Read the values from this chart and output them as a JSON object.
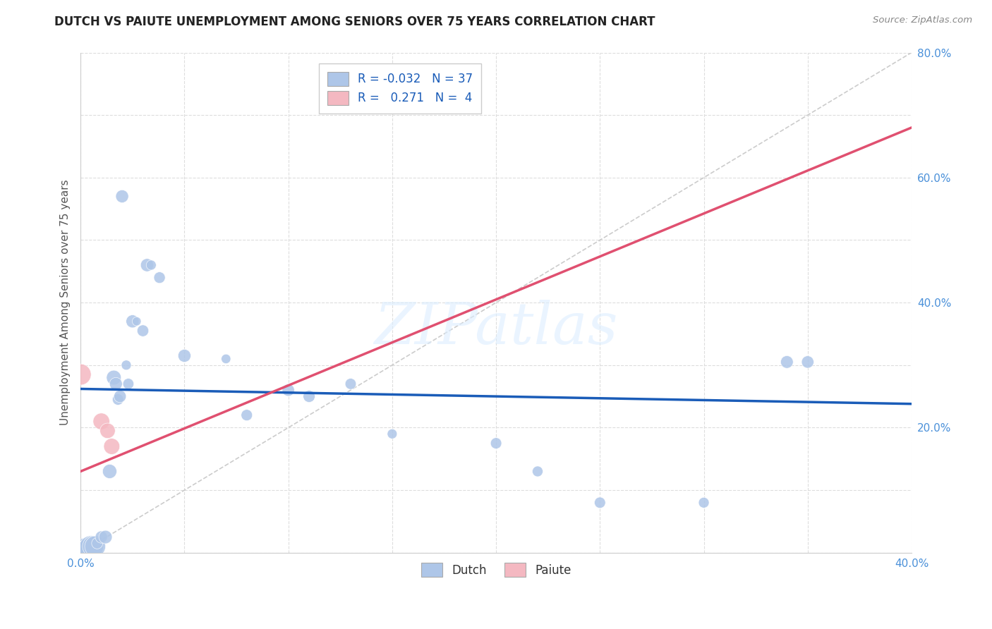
{
  "title": "DUTCH VS PAIUTE UNEMPLOYMENT AMONG SENIORS OVER 75 YEARS CORRELATION CHART",
  "source": "Source: ZipAtlas.com",
  "ylabel": "Unemployment Among Seniors over 75 years",
  "xlim": [
    0.0,
    0.4
  ],
  "ylim": [
    0.0,
    0.8
  ],
  "xticks": [
    0.0,
    0.05,
    0.1,
    0.15,
    0.2,
    0.25,
    0.3,
    0.35,
    0.4
  ],
  "yticks": [
    0.0,
    0.1,
    0.2,
    0.3,
    0.4,
    0.5,
    0.6,
    0.7,
    0.8
  ],
  "ytick_labels": [
    "",
    "",
    "20.0%",
    "",
    "40.0%",
    "",
    "60.0%",
    "",
    "80.0%"
  ],
  "xtick_labels": [
    "0.0%",
    "",
    "",
    "",
    "",
    "",
    "",
    "",
    "40.0%"
  ],
  "dutch_color": "#aec6e8",
  "paiute_color": "#f4b8c1",
  "dutch_line_color": "#1a5cb8",
  "paiute_line_color": "#e05070",
  "diagonal_color": "#cccccc",
  "legend_dutch_R": "-0.032",
  "legend_dutch_N": "37",
  "legend_paiute_R": "0.271",
  "legend_paiute_N": "4",
  "dutch_points": [
    [
      0.001,
      0.005
    ],
    [
      0.002,
      0.005
    ],
    [
      0.003,
      0.005
    ],
    [
      0.004,
      0.005
    ],
    [
      0.005,
      0.008
    ],
    [
      0.006,
      0.01
    ],
    [
      0.007,
      0.01
    ],
    [
      0.008,
      0.015
    ],
    [
      0.01,
      0.025
    ],
    [
      0.012,
      0.025
    ],
    [
      0.014,
      0.13
    ],
    [
      0.016,
      0.28
    ],
    [
      0.017,
      0.27
    ],
    [
      0.018,
      0.245
    ],
    [
      0.019,
      0.25
    ],
    [
      0.02,
      0.57
    ],
    [
      0.022,
      0.3
    ],
    [
      0.023,
      0.27
    ],
    [
      0.025,
      0.37
    ],
    [
      0.027,
      0.37
    ],
    [
      0.03,
      0.355
    ],
    [
      0.032,
      0.46
    ],
    [
      0.034,
      0.46
    ],
    [
      0.038,
      0.44
    ],
    [
      0.05,
      0.315
    ],
    [
      0.07,
      0.31
    ],
    [
      0.08,
      0.22
    ],
    [
      0.1,
      0.26
    ],
    [
      0.11,
      0.25
    ],
    [
      0.13,
      0.27
    ],
    [
      0.15,
      0.19
    ],
    [
      0.2,
      0.175
    ],
    [
      0.22,
      0.13
    ],
    [
      0.25,
      0.08
    ],
    [
      0.3,
      0.08
    ],
    [
      0.34,
      0.305
    ],
    [
      0.35,
      0.305
    ]
  ],
  "paiute_points": [
    [
      0.0,
      0.285
    ],
    [
      0.01,
      0.21
    ],
    [
      0.013,
      0.195
    ],
    [
      0.015,
      0.17
    ]
  ],
  "dutch_line": [
    0.0,
    0.262,
    0.4,
    0.238
  ],
  "paiute_line": [
    0.0,
    0.13,
    0.4,
    0.68
  ],
  "diagonal_line": [
    0.0,
    0.0,
    0.4,
    0.8
  ],
  "watermark_text": "ZIPatlas",
  "watermark_color": "#ddeeff",
  "background_color": "#ffffff",
  "grid_color": "#dddddd",
  "tick_color": "#4a90d9",
  "label_color": "#555555",
  "title_color": "#222222",
  "source_color": "#888888"
}
